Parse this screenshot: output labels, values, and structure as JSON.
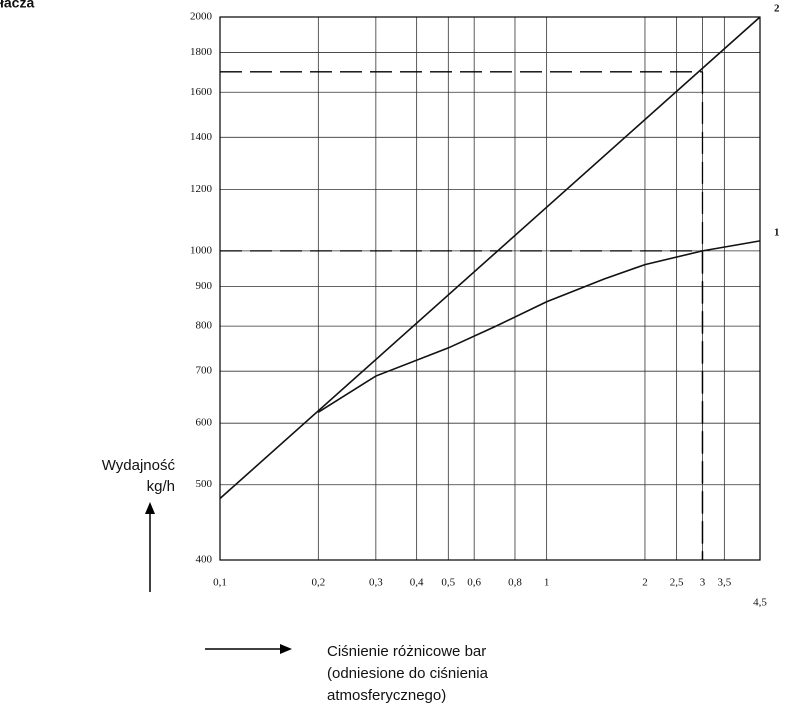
{
  "chart_data": {
    "type": "line",
    "title": "łacza",
    "y_label": [
      "Wydajność",
      "kg/h"
    ],
    "x_label": [
      "Ciśnienie różnicowe  bar",
      "(odniesione do ciśnienia",
      "atmosferycznego)"
    ],
    "xscale": "log",
    "yscale": "log",
    "grid": true,
    "xlim": [
      0.1,
      4.5
    ],
    "ylim": [
      400,
      2000
    ],
    "xticks": [
      {
        "value": 0.1,
        "label": "0,1"
      },
      {
        "value": 0.2,
        "label": "0,2"
      },
      {
        "value": 0.3,
        "label": "0,3"
      },
      {
        "value": 0.4,
        "label": "0,4"
      },
      {
        "value": 0.5,
        "label": "0,5"
      },
      {
        "value": 0.6,
        "label": "0,6"
      },
      {
        "value": 0.8,
        "label": "0,8"
      },
      1,
      2,
      {
        "value": 2.5,
        "label": "2,5"
      },
      3,
      {
        "value": 3.5,
        "label": "3,5"
      },
      {
        "value": 4.5,
        "label": "4,5"
      }
    ],
    "yticks": [
      400,
      500,
      600,
      700,
      800,
      900,
      1000,
      1200,
      1400,
      1600,
      1800,
      2000
    ],
    "series": [
      {
        "name": "1",
        "color": "#111111",
        "x": [
          0.2,
          0.3,
          0.5,
          0.7,
          1,
          1.5,
          2,
          3,
          4.5
        ],
        "values": [
          620,
          690,
          750,
          800,
          860,
          920,
          960,
          1000,
          1030
        ]
      },
      {
        "name": "2",
        "color": "#111111",
        "x": [
          0.1,
          4.5
        ],
        "values": [
          480,
          2000
        ]
      }
    ],
    "reference_points": [
      {
        "x": 3,
        "y": 1700
      },
      {
        "x": 3,
        "y": 1000
      }
    ]
  }
}
